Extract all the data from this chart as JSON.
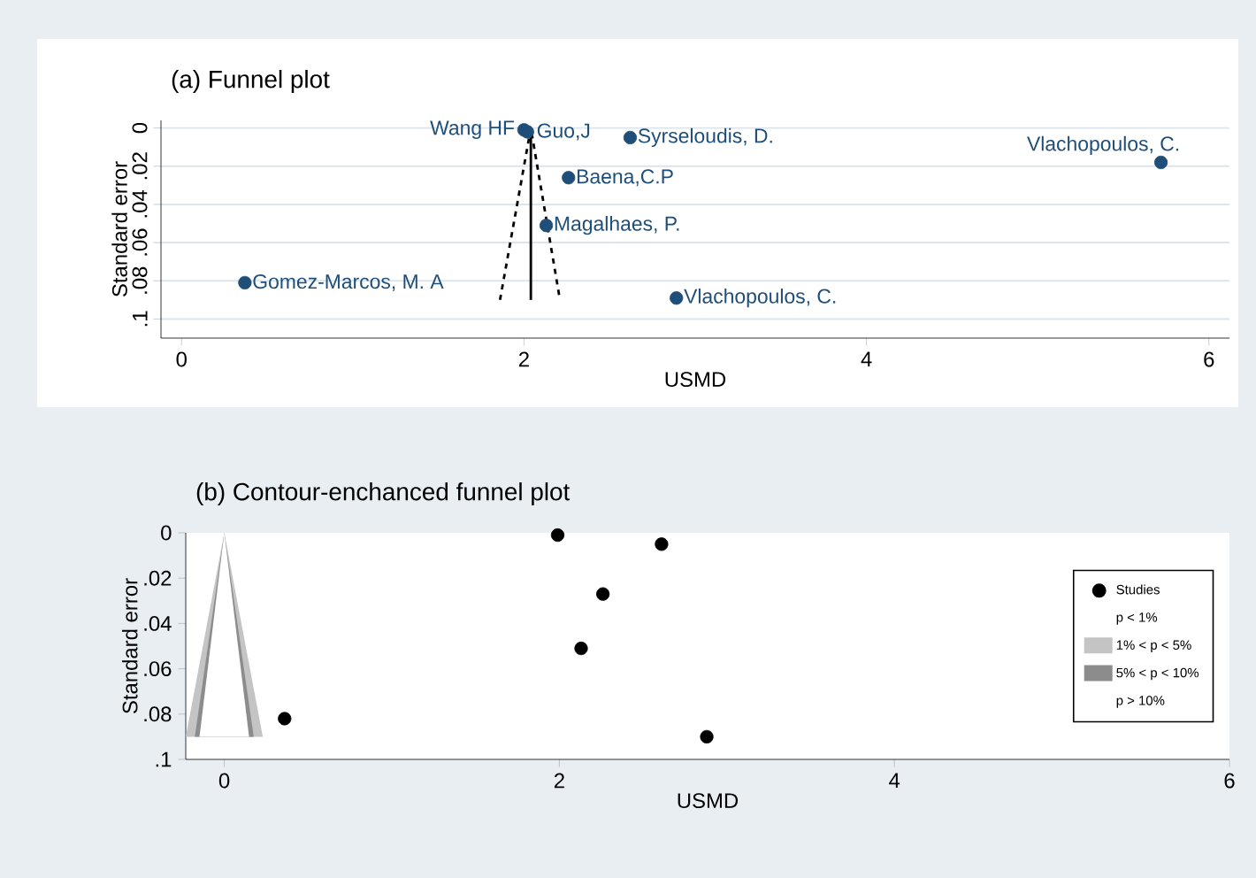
{
  "chart_data": [
    {
      "type": "scatter",
      "title": "(a) Funnel plot",
      "xlabel": "USMD",
      "ylabel": "Standard error",
      "xlim": [
        -0.12,
        6.12
      ],
      "ylim": [
        0.11,
        -0.004
      ],
      "xticks": [
        0,
        2,
        4,
        6
      ],
      "yticks": [
        0,
        {
          "value": 0.02,
          "label": ".02"
        },
        {
          "value": 0.04,
          "label": ".04"
        },
        {
          "value": 0.06,
          "label": ".06"
        },
        {
          "value": 0.08,
          "label": ".08"
        },
        {
          "value": 0.1,
          "label": ".1"
        }
      ],
      "grid": "y",
      "marker": "circle",
      "series": [
        {
          "color": "#1f4e79",
          "x": [
            2.0,
            2.02,
            2.62,
            5.72,
            2.26,
            2.13,
            0.37,
            2.89
          ],
          "values": [
            0.001,
            0.002,
            0.005,
            0.018,
            0.026,
            0.051,
            0.081,
            0.089
          ]
        },
        {
          "type": "line",
          "color": "#000000",
          "line_style": "solid",
          "marker": "none",
          "x": [
            2.04,
            2.04
          ],
          "values": [
            0,
            0.09
          ]
        },
        {
          "type": "line",
          "color": "#000000",
          "line_style": "dashed",
          "marker": "none",
          "x": [
            1.86,
            2.04,
            2.21
          ],
          "values": [
            0.09,
            0,
            0.09
          ]
        }
      ],
      "annotations": [
        {
          "text": "Wang HF",
          "x": 2.0,
          "y": 0.001
        },
        {
          "text": "Guo,J",
          "x": 2.02,
          "y": 0.002
        },
        {
          "text": "Syrseloudis, D.",
          "x": 2.62,
          "y": 0.005
        },
        {
          "text": "Vlachopoulos,  C.",
          "x": 5.72,
          "y": 0.018
        },
        {
          "text": "Baena,C.P",
          "x": 2.26,
          "y": 0.026
        },
        {
          "text": "Magalhaes, P.",
          "x": 2.13,
          "y": 0.051
        },
        {
          "text": "Gomez-Marcos, M. A",
          "x": 0.37,
          "y": 0.081
        },
        {
          "text": "Vlachopoulos, C.",
          "x": 2.89,
          "y": 0.089
        }
      ]
    },
    {
      "type": "scatter",
      "title": "(b) Contour-enchanced funnel plot",
      "xlabel": "USMD",
      "ylabel": "Standard error",
      "xlim": [
        -0.23,
        6
      ],
      "ylim": [
        0.1,
        0
      ],
      "xticks": [
        0,
        2,
        4,
        6
      ],
      "yticks": [
        0,
        {
          "value": 0.02,
          "label": ".02"
        },
        {
          "value": 0.04,
          "label": ".04"
        },
        {
          "value": 0.06,
          "label": ".06"
        },
        {
          "value": 0.08,
          "label": ".08"
        },
        {
          "value": 0.1,
          "label": ".1"
        }
      ],
      "legend": "right",
      "marker": "circle",
      "series": [
        {
          "name": "Studies",
          "color": "#000000",
          "x": [
            1.99,
            2.61,
            2.26,
            2.13,
            0.36,
            2.88
          ],
          "values": [
            0.001,
            0.005,
            0.027,
            0.051,
            0.082,
            0.09
          ]
        },
        {
          "type": "area",
          "name": "p < 1%",
          "marker": "none"
        },
        {
          "type": "area",
          "name": "1% < p < 5%",
          "color": "#c4c4c4",
          "marker": "none",
          "x": [
            0,
            -0.23,
            0.23
          ],
          "values": [
            0,
            0.09,
            0.09
          ]
        },
        {
          "type": "area",
          "name": "5% < p < 10%",
          "color": "#8c8c8c",
          "marker": "none",
          "x": [
            0,
            -0.176,
            0.176
          ],
          "values": [
            0,
            0.09,
            0.09
          ]
        },
        {
          "type": "area",
          "name": "p > 10%",
          "color": "#ffffff",
          "marker": "none",
          "x": [
            0,
            -0.148,
            0.148
          ],
          "values": [
            0,
            0.09,
            0.09
          ]
        }
      ]
    }
  ]
}
